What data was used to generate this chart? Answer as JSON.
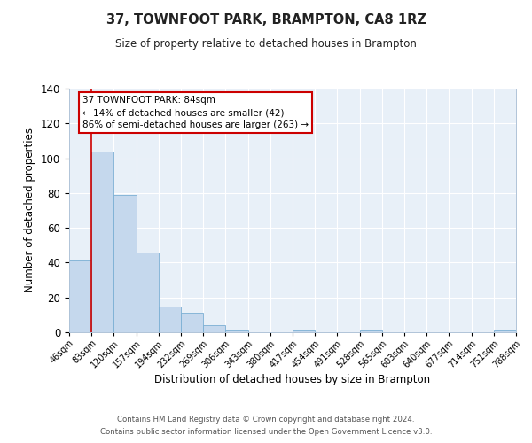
{
  "title": "37, TOWNFOOT PARK, BRAMPTON, CA8 1RZ",
  "subtitle": "Size of property relative to detached houses in Brampton",
  "xlabel": "Distribution of detached houses by size in Brampton",
  "ylabel": "Number of detached properties",
  "bar_heights": [
    41,
    104,
    79,
    46,
    15,
    11,
    4,
    1,
    0,
    0,
    1,
    0,
    0,
    1,
    0,
    0,
    0,
    0,
    0,
    1
  ],
  "bin_labels": [
    "46sqm",
    "83sqm",
    "120sqm",
    "157sqm",
    "194sqm",
    "232sqm",
    "269sqm",
    "306sqm",
    "343sqm",
    "380sqm",
    "417sqm",
    "454sqm",
    "491sqm",
    "528sqm",
    "565sqm",
    "603sqm",
    "640sqm",
    "677sqm",
    "714sqm",
    "751sqm",
    "788sqm"
  ],
  "bar_color": "#c5d8ed",
  "bar_edge_color": "#7bafd4",
  "red_line_x": 1,
  "ylim": [
    0,
    140
  ],
  "yticks": [
    0,
    20,
    40,
    60,
    80,
    100,
    120,
    140
  ],
  "annotation_title": "37 TOWNFOOT PARK: 84sqm",
  "annotation_line1": "← 14% of detached houses are smaller (42)",
  "annotation_line2": "86% of semi-detached houses are larger (263) →",
  "annotation_box_color": "#ffffff",
  "annotation_box_edge": "#cc0000",
  "footer_line1": "Contains HM Land Registry data © Crown copyright and database right 2024.",
  "footer_line2": "Contains public sector information licensed under the Open Government Licence v3.0.",
  "background_color": "#dce9f5",
  "plot_bg_color": "#e8f0f8",
  "grid_color": "#ffffff",
  "figure_bg": "#ffffff"
}
